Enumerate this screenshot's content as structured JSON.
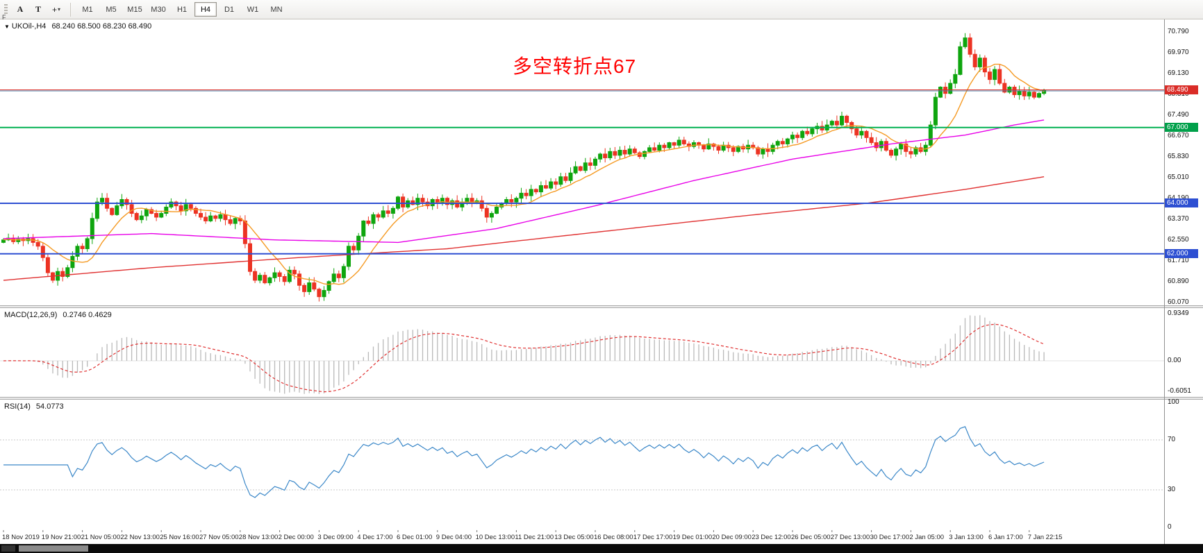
{
  "toolbar": {
    "handle_label": "F",
    "tool_buttons": [
      {
        "name": "text-tool",
        "label": "A"
      },
      {
        "name": "text-box-tool",
        "label": "T"
      },
      {
        "name": "crosshair-tool",
        "label": "+",
        "dropdown": true
      }
    ],
    "timeframes": [
      "M1",
      "M5",
      "M15",
      "M30",
      "H1",
      "H4",
      "D1",
      "W1",
      "MN"
    ],
    "selected_timeframe": "H4"
  },
  "main_chart": {
    "symbol_label": "UKOil-,H4",
    "ohlc_text": "68.240 68.500 68.230 68.490"
  },
  "macd_panel": {
    "label": "MACD(12,26,9)",
    "values_text": "0.2746 0.4629"
  },
  "rsi_panel": {
    "label": "RSI(14)",
    "value_text": "54.0773"
  },
  "chart_data": {
    "type": "candlestick",
    "symbol": "UKOil-",
    "timeframe": "H4",
    "current_ohlc": {
      "open": 68.24,
      "high": 68.5,
      "low": 68.23,
      "close": 68.49
    },
    "annotation": {
      "text": "多空转折点67",
      "color": "#ff0000"
    },
    "price_range": {
      "min": 59.96,
      "max": 71.28
    },
    "y_axis_labels": [
      "70.790",
      "69.970",
      "69.130",
      "68.310",
      "67.490",
      "66.670",
      "65.830",
      "65.010",
      "64.190",
      "63.370",
      "62.550",
      "61.710",
      "60.890",
      "60.070"
    ],
    "x_labels": [
      "18 Nov 2019",
      "19 Nov 21:00",
      "21 Nov 05:00",
      "22 Nov 13:00",
      "25 Nov 16:00",
      "27 Nov 05:00",
      "28 Nov 13:00",
      "2 Dec 00:00",
      "3 Dec 09:00",
      "4 Dec 17:00",
      "6 Dec 01:00",
      "9 Dec 04:00",
      "10 Dec 13:00",
      "11 Dec 21:00",
      "13 Dec 05:00",
      "16 Dec 08:00",
      "17 Dec 17:00",
      "19 Dec 01:00",
      "20 Dec 09:00",
      "23 Dec 12:00",
      "26 Dec 05:00",
      "27 Dec 13:00",
      "30 Dec 17:00",
      "2 Jan 05:00",
      "3 Jan 13:00",
      "6 Jan 17:00",
      "7 Jan 22:15"
    ],
    "candles_per_label": 8,
    "closes": [
      62.55,
      62.62,
      62.48,
      62.58,
      62.52,
      62.6,
      62.45,
      62.3,
      61.85,
      61.25,
      60.95,
      61.3,
      61.1,
      61.45,
      61.9,
      62.3,
      62.2,
      62.6,
      63.4,
      64.05,
      64.2,
      63.8,
      63.55,
      63.9,
      64.15,
      63.95,
      63.6,
      63.35,
      63.5,
      63.75,
      63.6,
      63.45,
      63.6,
      63.85,
      64.05,
      63.9,
      63.7,
      63.95,
      63.8,
      63.6,
      63.45,
      63.3,
      63.5,
      63.4,
      63.55,
      63.35,
      63.2,
      63.4,
      63.3,
      62.4,
      61.3,
      60.95,
      61.15,
      60.85,
      61.05,
      61.25,
      61.1,
      60.9,
      61.35,
      61.2,
      60.75,
      60.5,
      60.85,
      60.6,
      60.3,
      60.55,
      60.9,
      61.2,
      61.05,
      61.5,
      62.3,
      62.15,
      62.7,
      63.3,
      63.2,
      63.55,
      63.45,
      63.7,
      63.6,
      63.8,
      64.25,
      63.85,
      64.1,
      63.95,
      64.2,
      64.05,
      63.9,
      64.15,
      64.0,
      64.2,
      63.95,
      64.1,
      63.85,
      64.05,
      64.2,
      64.0,
      64.1,
      63.8,
      63.45,
      63.6,
      63.85,
      64.0,
      64.15,
      64.05,
      64.2,
      64.4,
      64.3,
      64.55,
      64.45,
      64.7,
      64.6,
      64.85,
      64.75,
      65.05,
      64.9,
      65.2,
      65.45,
      65.3,
      65.6,
      65.5,
      65.75,
      65.95,
      65.8,
      66.05,
      65.9,
      66.1,
      65.95,
      66.15,
      66.0,
      65.85,
      66.05,
      66.2,
      66.1,
      66.3,
      66.2,
      66.4,
      66.3,
      66.5,
      66.35,
      66.25,
      66.4,
      66.3,
      66.15,
      66.35,
      66.25,
      66.1,
      66.3,
      66.2,
      66.05,
      66.25,
      66.15,
      66.3,
      66.2,
      65.95,
      66.15,
      66.05,
      66.3,
      66.45,
      66.35,
      66.55,
      66.7,
      66.6,
      66.85,
      66.75,
      66.95,
      67.05,
      66.9,
      67.1,
      67.25,
      67.1,
      67.45,
      67.2,
      66.95,
      66.7,
      66.85,
      66.6,
      66.4,
      66.2,
      66.45,
      66.1,
      65.9,
      66.15,
      66.35,
      66.05,
      65.95,
      66.2,
      66.05,
      66.3,
      67.1,
      68.2,
      68.6,
      68.35,
      68.75,
      69.1,
      70.2,
      70.55,
      69.9,
      69.4,
      69.75,
      69.2,
      68.9,
      69.3,
      68.75,
      68.4,
      68.6,
      68.3,
      68.45,
      68.25,
      68.4,
      68.2,
      68.35,
      68.49
    ],
    "hlines": [
      {
        "price": 68.45,
        "color": "#4a7aa0",
        "width": 1,
        "name": "horizontal-line-6845"
      },
      {
        "price": 68.49,
        "color": "#da2c27",
        "width": 1,
        "name": "bid-price-line",
        "tag": "68.490",
        "tag_color": "#da2c27"
      },
      {
        "price": 67.0,
        "color": "#00b050",
        "width": 2,
        "name": "support-line-67",
        "tag": "67.000",
        "tag_color": "#00a04a"
      },
      {
        "price": 64.0,
        "color": "#2d4fd2",
        "width": 2,
        "name": "support-line-64",
        "tag": "64.000",
        "tag_color": "#2d4fd2"
      },
      {
        "price": 62.0,
        "color": "#2d4fd2",
        "width": 2,
        "name": "support-line-62",
        "tag": "62.000",
        "tag_color": "#2d4fd2"
      }
    ],
    "ma_lines": [
      {
        "name": "ma-fast-orange",
        "color": "#f59a23",
        "type": "sma",
        "period": 10
      },
      {
        "name": "ma-medium-magenta",
        "color": "#e800e8",
        "type": "anchors",
        "anchors": [
          [
            0,
            62.6
          ],
          [
            30,
            62.8
          ],
          [
            55,
            62.55
          ],
          [
            80,
            62.45
          ],
          [
            100,
            63.0
          ],
          [
            120,
            63.9
          ],
          [
            140,
            64.9
          ],
          [
            160,
            65.75
          ],
          [
            180,
            66.35
          ],
          [
            195,
            66.7
          ],
          [
            205,
            67.1
          ],
          [
            211,
            67.3
          ]
        ]
      },
      {
        "name": "ma-slow-red",
        "color": "#e03131",
        "type": "anchors",
        "anchors": [
          [
            0,
            60.95
          ],
          [
            30,
            61.45
          ],
          [
            60,
            61.85
          ],
          [
            90,
            62.2
          ],
          [
            120,
            62.85
          ],
          [
            150,
            63.5
          ],
          [
            175,
            64.0
          ],
          [
            195,
            64.55
          ],
          [
            211,
            65.05
          ]
        ]
      }
    ],
    "indicators": {
      "macd": {
        "fast": 12,
        "slow": 26,
        "signal": 9,
        "value": 0.2746,
        "signal_value": 0.4629,
        "scale_max": 0.9349,
        "scale_min": -0.6051,
        "scale_labels": [
          {
            "text": "0.9349",
            "value": 0.9349
          },
          {
            "text": "0.00",
            "value": 0
          },
          {
            "text": "-0.6051",
            "value": -0.6051
          }
        ],
        "histogram_color": "#b9b9b9",
        "signal_color": "#e03131"
      },
      "rsi": {
        "period": 14,
        "value": 54.0773,
        "color": "#3a87c8",
        "levels": [
          70,
          30
        ],
        "scale_labels": [
          {
            "text": "100",
            "value": 100
          },
          {
            "text": "70",
            "value": 70
          },
          {
            "text": "30",
            "value": 30
          },
          {
            "text": "0",
            "value": 0
          }
        ]
      }
    },
    "colors": {
      "up": "#0ea50e",
      "down": "#ec3323",
      "background": "#ffffff"
    }
  }
}
